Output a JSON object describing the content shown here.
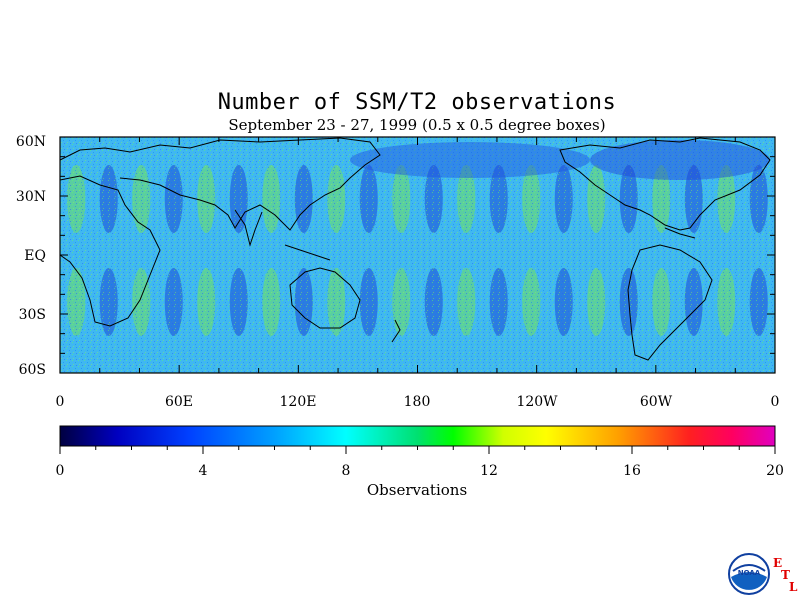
{
  "title": "Number of SSM/T2 observations",
  "subtitle": "September 23 - 27, 1999 (0.5 x 0.5 degree boxes)",
  "map": {
    "lat_labels": [
      "60N",
      "30N",
      "EQ",
      "30S",
      "60S"
    ],
    "lon_labels": [
      "0",
      "60E",
      "120E",
      "180",
      "120W",
      "60W",
      "0"
    ],
    "lat_range": [
      -60,
      60
    ],
    "lon_range": [
      0,
      360
    ]
  },
  "colorbar": {
    "ticks": [
      "0",
      "4",
      "8",
      "12",
      "16",
      "20"
    ],
    "range": [
      0,
      20
    ],
    "label": "Observations",
    "colors": [
      "#000060",
      "#0000e0",
      "#2060ff",
      "#00c8ff",
      "#00ffff",
      "#00e060",
      "#00ff00",
      "#c0ff00",
      "#ffff00",
      "#ffb000",
      "#ff7000",
      "#ff2000",
      "#ff0040",
      "#ff00a0",
      "#e000e0"
    ]
  },
  "logo": {
    "name": "NOAA",
    "etl": [
      "E",
      "T",
      "L"
    ]
  }
}
